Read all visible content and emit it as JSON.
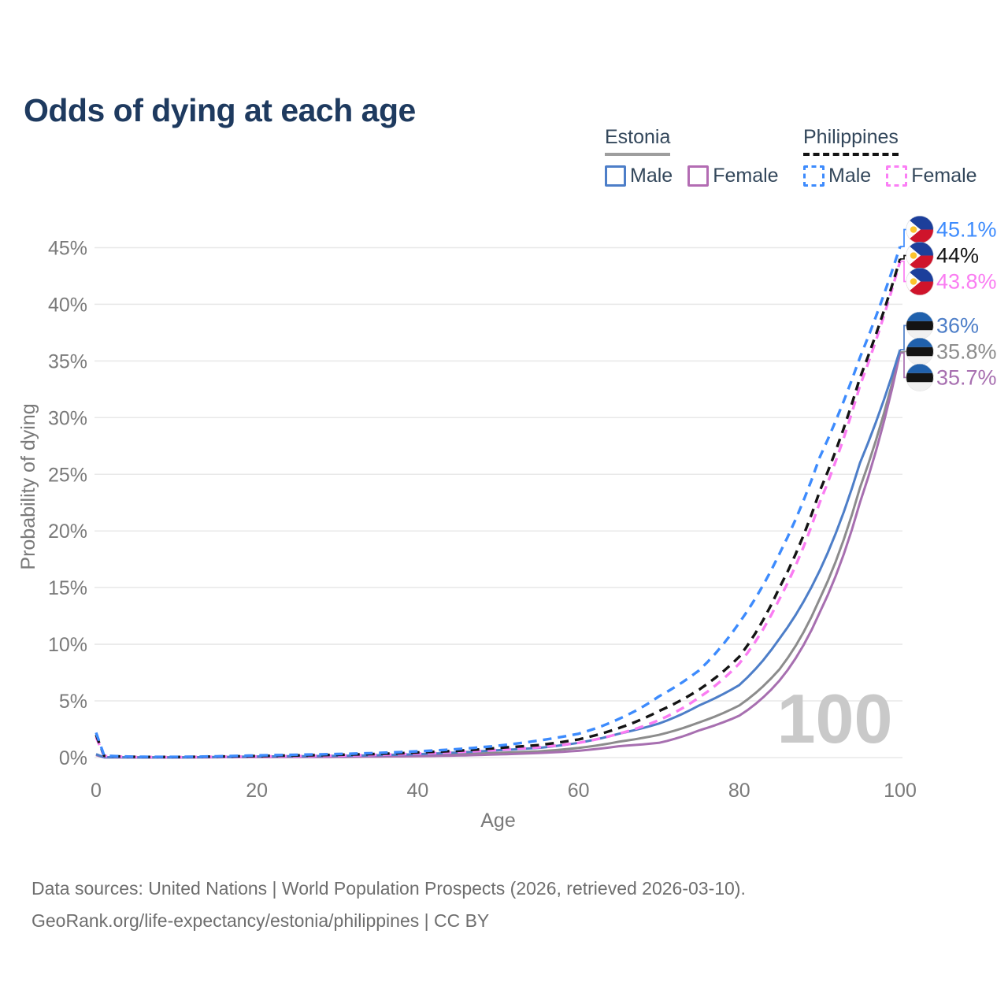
{
  "title": "Odds of dying at each age",
  "legend": {
    "groups": [
      {
        "name": "Estonia",
        "line": "solid",
        "underline_color": "#9e9e9e",
        "items": [
          {
            "label": "Male",
            "color": "#4d7ec8"
          },
          {
            "label": "Female",
            "color": "#b36cb3"
          }
        ]
      },
      {
        "name": "Philippines",
        "line": "dashed",
        "underline_color": "#141414",
        "items": [
          {
            "label": "Male",
            "color": "#3d8bfd"
          },
          {
            "label": "Female",
            "color": "#fb7ef5"
          }
        ]
      }
    ]
  },
  "footer": {
    "line1": "Data sources: United Nations | World Population Prospects (2026, retrieved 2026-03-10).",
    "line2": "GeoRank.org/life-expectancy/estonia/philippines | CC BY"
  },
  "chart_data": {
    "type": "line",
    "title": "Odds of dying at each age",
    "xlabel": "Age",
    "ylabel": "Probability of dying",
    "xlim": [
      0,
      100
    ],
    "ylim_pct": [
      0,
      46.5
    ],
    "xticks": [
      0,
      20,
      40,
      60,
      80,
      100
    ],
    "yticks_pct": [
      0,
      5,
      10,
      15,
      20,
      25,
      30,
      35,
      40,
      45
    ],
    "ytick_suffix": "%",
    "grid": true,
    "age_indicator": "100",
    "ages": [
      0,
      1,
      5,
      10,
      15,
      20,
      25,
      30,
      35,
      40,
      45,
      50,
      55,
      60,
      65,
      70,
      75,
      80,
      85,
      90,
      95,
      100
    ],
    "series": [
      {
        "name": "Estonia average",
        "country": "Estonia",
        "sex": "average",
        "line": "solid",
        "color": "#8c8c8c",
        "end_label": "35.8%",
        "values_pct": [
          0.25,
          0.025,
          0.015,
          0.015,
          0.04,
          0.07,
          0.08,
          0.11,
          0.15,
          0.2,
          0.3,
          0.42,
          0.55,
          0.85,
          1.4,
          2.0,
          3.1,
          4.6,
          7.8,
          14.0,
          23.8,
          35.8
        ]
      },
      {
        "name": "Estonia female",
        "country": "Estonia",
        "sex": "female",
        "line": "solid",
        "color": "#a76fb0",
        "end_label": "35.7%",
        "values_pct": [
          0.22,
          0.02,
          0.01,
          0.01,
          0.03,
          0.04,
          0.05,
          0.06,
          0.09,
          0.12,
          0.18,
          0.28,
          0.4,
          0.6,
          1.0,
          1.3,
          2.4,
          3.7,
          6.8,
          12.8,
          22.5,
          35.7
        ]
      },
      {
        "name": "Estonia male",
        "country": "Estonia",
        "sex": "male",
        "line": "solid",
        "color": "#4d7ec8",
        "end_label": "36%",
        "values_pct": [
          0.3,
          0.03,
          0.02,
          0.02,
          0.05,
          0.1,
          0.12,
          0.15,
          0.21,
          0.3,
          0.45,
          0.65,
          0.85,
          1.3,
          2.1,
          3.0,
          4.6,
          6.4,
          10.5,
          16.5,
          26.0,
          36.0
        ]
      },
      {
        "name": "Philippines female",
        "country": "Philippines",
        "sex": "female",
        "line": "dashed",
        "color": "#fa7cf2",
        "end_label": "43.8%",
        "values_pct": [
          1.8,
          0.14,
          0.05,
          0.04,
          0.07,
          0.1,
          0.13,
          0.17,
          0.24,
          0.35,
          0.48,
          0.68,
          0.9,
          1.3,
          2.1,
          3.3,
          5.3,
          8.3,
          14.0,
          22.5,
          32.8,
          43.8
        ]
      },
      {
        "name": "Philippines average",
        "country": "Philippines",
        "sex": "average",
        "line": "dashed",
        "color": "#141414",
        "end_label": "44%",
        "values_pct": [
          2.0,
          0.16,
          0.06,
          0.05,
          0.09,
          0.14,
          0.19,
          0.24,
          0.32,
          0.45,
          0.6,
          0.85,
          1.1,
          1.6,
          2.6,
          4.1,
          6.0,
          8.9,
          15.0,
          23.5,
          33.5,
          44.0
        ]
      },
      {
        "name": "Philippines male",
        "country": "Philippines",
        "sex": "male",
        "line": "dashed",
        "color": "#3d8bfd",
        "end_label": "45.1%",
        "values_pct": [
          2.2,
          0.18,
          0.07,
          0.06,
          0.11,
          0.19,
          0.25,
          0.31,
          0.41,
          0.55,
          0.75,
          1.05,
          1.5,
          2.1,
          3.4,
          5.4,
          7.7,
          11.9,
          18.0,
          26.5,
          35.3,
          45.1
        ]
      }
    ],
    "flag_colors": {
      "estonia_blue": "#2061ad",
      "estonia_black": "#141414",
      "estonia_white": "#f1f1f1",
      "ph_blue": "#1c3f9b",
      "ph_red": "#cf142b",
      "ph_yellow": "#fbc42d",
      "ph_white": "#fdfdfd"
    }
  }
}
